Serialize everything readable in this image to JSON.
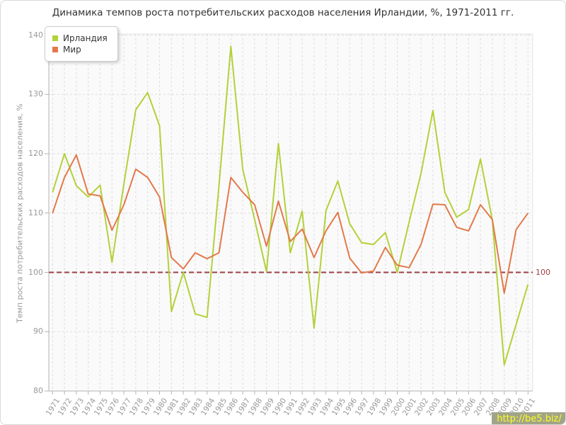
{
  "title": "Динамика темпов роста потребительских расходов населения Ирландии, %, 1971-2011 гг.",
  "watermark": {
    "text": "http://be5.biz/"
  },
  "colors": {
    "ireland": "#b3d139",
    "world": "#e3794b",
    "reference": "#9e3e46",
    "grid": "#dddddd",
    "axis": "#b3b3b3",
    "tick_text": "#999999",
    "plot_bg": "#fafafa"
  },
  "chart_data": {
    "type": "line",
    "title": "Динамика темпов роста потребительских расходов населения Ирландии, %, 1971-2011 гг.",
    "xlabel": "",
    "ylabel": "Темп роста потребительских расходов населения, %",
    "ylim": [
      80,
      140
    ],
    "yticks": [
      80,
      90,
      100,
      110,
      120,
      130,
      140
    ],
    "grid": true,
    "legend_position": "top-left",
    "reference_line": {
      "value": 100,
      "label": "100",
      "style": "dashed",
      "color": "#9e3e46"
    },
    "categories": [
      "1971",
      "1972",
      "1973",
      "1974",
      "1975",
      "1976",
      "1977",
      "1978",
      "1979",
      "1980",
      "1981",
      "1982",
      "1983",
      "1984",
      "1985",
      "1986",
      "1987",
      "1988",
      "1989",
      "1990",
      "1991",
      "1992",
      "1993",
      "1994",
      "1995",
      "1996",
      "1997",
      "1998",
      "1999",
      "2000",
      "2001",
      "2002",
      "2003",
      "2004",
      "2005",
      "2006",
      "2007",
      "2008",
      "2009",
      "2010",
      "2011"
    ],
    "series": [
      {
        "name": "Ирландия",
        "color": "#b3d139",
        "values": [
          113.5,
          120.0,
          114.6,
          112.7,
          114.7,
          101.7,
          114.9,
          127.4,
          130.3,
          124.7,
          93.4,
          100.0,
          93.0,
          92.4,
          114.6,
          138.1,
          117.4,
          108.9,
          100.1,
          121.7,
          103.3,
          110.3,
          90.6,
          110.4,
          115.4,
          108.2,
          105.0,
          104.7,
          106.7,
          100.0,
          108.5,
          116.7,
          127.3,
          113.5,
          109.3,
          110.6,
          119.1,
          108.8,
          84.4,
          91.2,
          98.0
        ]
      },
      {
        "name": "Мир",
        "color": "#e3794b",
        "values": [
          110.0,
          116.0,
          119.8,
          113.2,
          112.9,
          107.1,
          111.4,
          117.4,
          116.0,
          112.7,
          102.5,
          100.6,
          103.3,
          102.3,
          103.3,
          116.0,
          113.5,
          111.4,
          104.4,
          112.0,
          105.2,
          107.3,
          102.5,
          107.0,
          110.1,
          102.4,
          99.9,
          100.2,
          104.2,
          101.2,
          100.8,
          104.7,
          111.5,
          111.4,
          107.6,
          107.0,
          111.4,
          108.9,
          96.5,
          107.2,
          110.0
        ]
      }
    ]
  }
}
